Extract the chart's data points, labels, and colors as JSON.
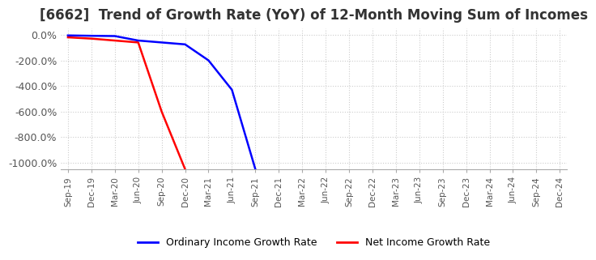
{
  "title": "[6662]  Trend of Growth Rate (YoY) of 12-Month Moving Sum of Incomes",
  "title_fontsize": 12,
  "legend_labels": [
    "Ordinary Income Growth Rate",
    "Net Income Growth Rate"
  ],
  "legend_colors": [
    "#0000ff",
    "#ff0000"
  ],
  "ylim": [
    -1050,
    50
  ],
  "yticks": [
    0,
    -200,
    -400,
    -600,
    -800,
    -1000
  ],
  "ytick_labels": [
    "0.0%",
    "-200.0%",
    "-400.0%",
    "-600.0%",
    "-800.0%",
    "-1000.0%"
  ],
  "x_labels": [
    "Sep-19",
    "Dec-19",
    "Mar-20",
    "Jun-20",
    "Sep-20",
    "Dec-20",
    "Mar-21",
    "Jun-21",
    "Sep-21",
    "Dec-21",
    "Mar-22",
    "Jun-22",
    "Sep-22",
    "Dec-22",
    "Mar-23",
    "Jun-23",
    "Sep-23",
    "Dec-23",
    "Mar-24",
    "Jun-24",
    "Sep-24",
    "Dec-24"
  ],
  "ordinary_income_x": [
    0,
    1,
    2,
    3,
    4,
    5,
    6,
    7,
    8
  ],
  "ordinary_income_y": [
    -5,
    -8,
    -10,
    -45,
    -60,
    -75,
    -200,
    -430,
    -1050
  ],
  "net_income_x": [
    0,
    1,
    2,
    3,
    4,
    5
  ],
  "net_income_y": [
    -20,
    -30,
    -45,
    -60,
    -600,
    -1050
  ],
  "background_color": "#ffffff",
  "grid_color": "#cccccc",
  "plot_bg_color": "#ffffff"
}
